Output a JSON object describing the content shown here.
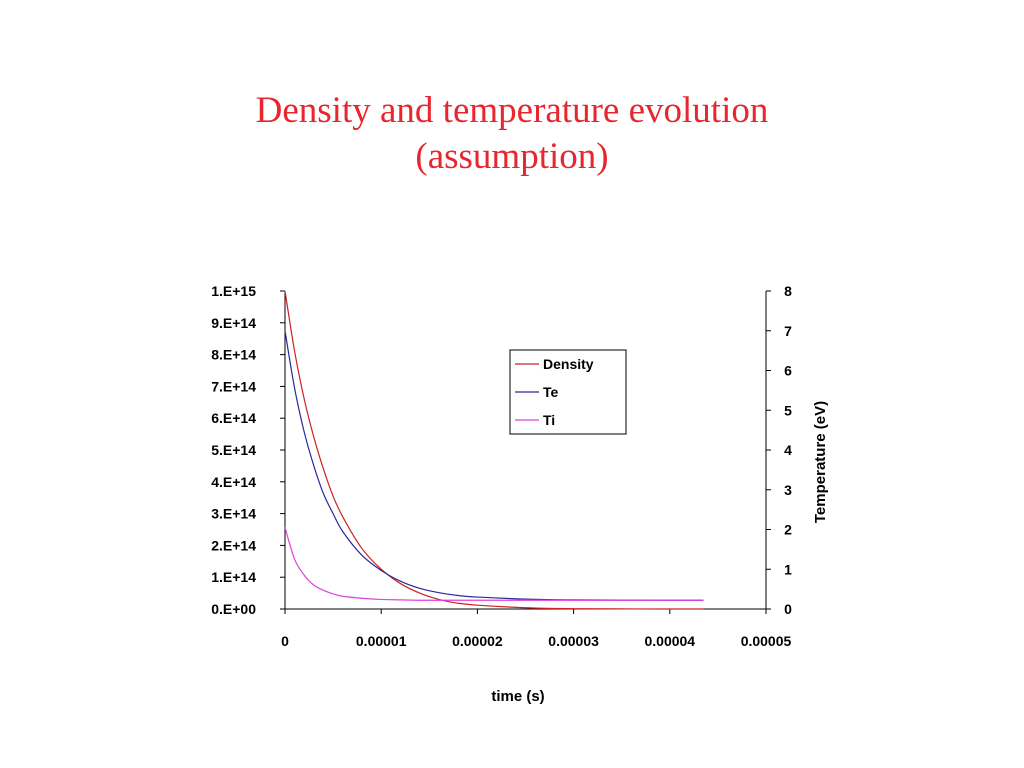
{
  "slide": {
    "title_line1": "Density and temperature evolution",
    "title_line2": "(assumption)"
  },
  "chart_data": {
    "type": "line",
    "title": "",
    "xlabel": "time (s)",
    "ylabel": "",
    "y2label": "Temperature (eV)",
    "xlim": [
      0,
      5e-05
    ],
    "ylim": [
      0,
      1000000000000000.0
    ],
    "y2lim": [
      0,
      8
    ],
    "x_ticks": [
      0,
      1e-05,
      2e-05,
      3e-05,
      4e-05,
      5e-05
    ],
    "x_tick_labels": [
      "0",
      "0.00001",
      "0.00002",
      "0.00003",
      "0.00004",
      "0.00005"
    ],
    "y_ticks": [
      0,
      100000000000000.0,
      200000000000000.0,
      300000000000000.0,
      400000000000000.0,
      500000000000000.0,
      600000000000000.0,
      700000000000000.0,
      800000000000000.0,
      900000000000000.0,
      1000000000000000.0
    ],
    "y_tick_labels": [
      "0.E+00",
      "1.E+14",
      "2.E+14",
      "3.E+14",
      "4.E+14",
      "5.E+14",
      "6.E+14",
      "7.E+14",
      "8.E+14",
      "9.E+14",
      "1.E+15"
    ],
    "y2_ticks": [
      0,
      1,
      2,
      3,
      4,
      5,
      6,
      7,
      8
    ],
    "y2_tick_labels": [
      "0",
      "1",
      "2",
      "3",
      "4",
      "5",
      "6",
      "7",
      "8"
    ],
    "grid": false,
    "legend_position": "top-right",
    "series": [
      {
        "name": "Density",
        "axis": "left",
        "color": "#cc2222",
        "x": [
          0,
          1e-06,
          2e-06,
          3e-06,
          4e-06,
          5e-06,
          6e-06,
          8e-06,
          1e-05,
          1.2e-05,
          1.4e-05,
          1.6e-05,
          1.8e-05,
          2e-05,
          2.5e-05,
          3e-05,
          4e-05,
          4.35e-05
        ],
        "values": [
          1000000000000000.0,
          810000000000000.0,
          660000000000000.0,
          540000000000000.0,
          440000000000000.0,
          355000000000000.0,
          290000000000000.0,
          190000000000000.0,
          125000000000000.0,
          80000000000000.0,
          50000000000000.0,
          30000000000000.0,
          18000000000000.0,
          12000000000000.0,
          4000000000000.0,
          1000000000000.0,
          0,
          0
        ]
      },
      {
        "name": "Te",
        "axis": "right",
        "color": "#2a2a9a",
        "x": [
          0,
          1e-06,
          2e-06,
          3e-06,
          4e-06,
          5e-06,
          6e-06,
          8e-06,
          1e-05,
          1.2e-05,
          1.4e-05,
          1.6e-05,
          1.8e-05,
          2e-05,
          2.5e-05,
          3e-05,
          4e-05,
          4.35e-05
        ],
        "values": [
          7.0,
          5.55,
          4.45,
          3.6,
          2.9,
          2.4,
          1.95,
          1.35,
          0.97,
          0.7,
          0.52,
          0.41,
          0.34,
          0.3,
          0.25,
          0.23,
          0.22,
          0.22
        ]
      },
      {
        "name": "Ti",
        "axis": "right",
        "color": "#e040e0",
        "x": [
          0,
          1e-06,
          2e-06,
          3e-06,
          4e-06,
          5e-06,
          6e-06,
          8e-06,
          1e-05,
          1.2e-05,
          1.4e-05,
          1.6e-05,
          2e-05,
          3e-05,
          4e-05,
          4.35e-05
        ],
        "values": [
          2.05,
          1.25,
          0.85,
          0.6,
          0.47,
          0.38,
          0.32,
          0.27,
          0.24,
          0.23,
          0.22,
          0.22,
          0.22,
          0.22,
          0.22,
          0.22
        ]
      }
    ]
  }
}
